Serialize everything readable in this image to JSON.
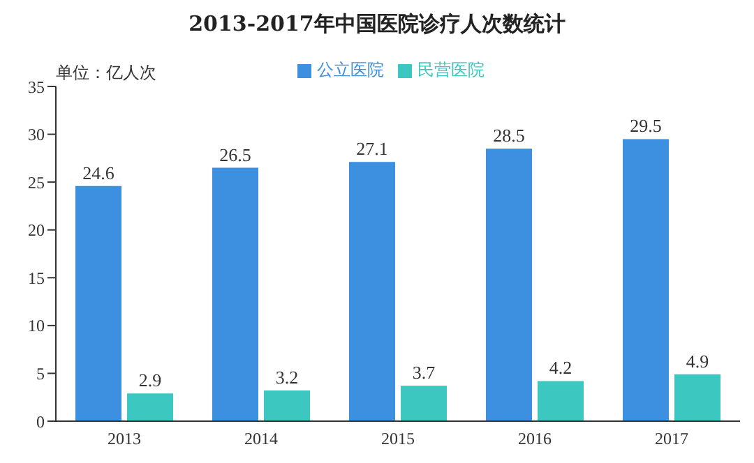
{
  "chart_data": {
    "type": "bar",
    "title": "2013-2017年中国医院诊疗人次数统计",
    "annotations": [
      "单位：亿人次"
    ],
    "categories": [
      "2013",
      "2014",
      "2015",
      "2016",
      "2017"
    ],
    "series": [
      {
        "name": "公立医院",
        "color": "#3d8fe0",
        "values": [
          24.6,
          26.5,
          27.1,
          28.5,
          29.5
        ]
      },
      {
        "name": "民营医院",
        "color": "#3cc8c0",
        "values": [
          2.9,
          3.2,
          3.7,
          4.2,
          4.9
        ]
      }
    ],
    "ylim": [
      0,
      35
    ],
    "yticks": [
      0,
      5,
      10,
      15,
      20,
      25,
      30,
      35
    ],
    "data_labels": true,
    "legend": "top",
    "grid": false
  }
}
